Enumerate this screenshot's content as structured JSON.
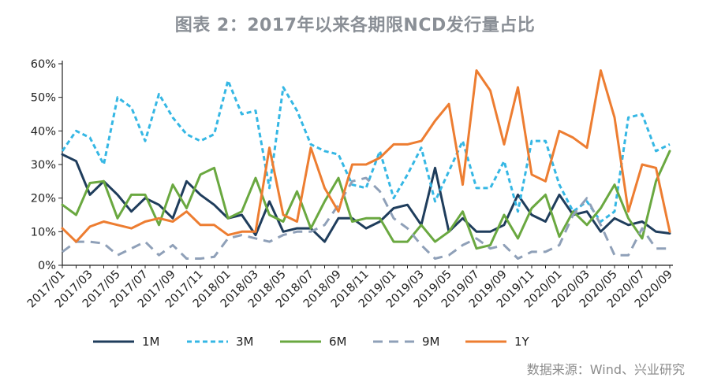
{
  "title": "图表 2：2017年以来各期限NCD发行量占比",
  "source": "数据来源：Wind、兴业研究",
  "chart_data": {
    "type": "line",
    "ylim": [
      0,
      60
    ],
    "y_ticks": [
      "0%",
      "10%",
      "20%",
      "30%",
      "40%",
      "50%",
      "60%"
    ],
    "x": [
      "2017/01",
      "2017/02",
      "2017/03",
      "2017/04",
      "2017/05",
      "2017/06",
      "2017/07",
      "2017/08",
      "2017/09",
      "2017/10",
      "2017/11",
      "2017/12",
      "2018/01",
      "2018/02",
      "2018/03",
      "2018/04",
      "2018/05",
      "2018/06",
      "2018/07",
      "2018/08",
      "2018/09",
      "2018/10",
      "2018/11",
      "2018/12",
      "2019/01",
      "2019/02",
      "2019/03",
      "2019/04",
      "2019/05",
      "2019/06",
      "2019/07",
      "2019/08",
      "2019/09",
      "2019/10",
      "2019/11",
      "2019/12",
      "2020/01",
      "2020/02",
      "2020/03",
      "2020/04",
      "2020/05",
      "2020/06",
      "2020/07",
      "2020/08",
      "2020/09"
    ],
    "x_tick_labels": [
      "2017/01",
      "2017/03",
      "2017/05",
      "2017/07",
      "2017/09",
      "2017/11",
      "2018/01",
      "2018/03",
      "2018/05",
      "2018/07",
      "2018/09",
      "2018/11",
      "2019/01",
      "2019/03",
      "2019/05",
      "2019/07",
      "2019/09",
      "2019/11",
      "2020/01",
      "2020/03",
      "2020/05",
      "2020/07",
      "2020/09"
    ],
    "series": [
      {
        "name": "1M",
        "color": "#1f3d5c",
        "dash": "solid",
        "values": [
          33,
          31,
          21,
          25,
          21,
          16,
          20,
          18,
          14,
          25,
          21,
          18,
          14,
          15,
          9,
          19,
          10,
          11,
          11,
          7,
          14,
          14,
          11,
          13,
          17,
          18,
          12,
          29,
          10,
          14,
          10,
          10,
          12,
          21,
          15,
          13,
          21,
          15,
          16,
          10,
          14,
          12,
          13,
          10,
          9.5
        ]
      },
      {
        "name": "3M",
        "color": "#35b7e4",
        "dash": "dashed",
        "values": [
          34,
          40,
          38,
          30,
          50,
          47,
          37,
          51,
          44,
          39,
          37,
          39,
          55,
          45,
          46,
          23,
          53,
          46,
          36,
          34,
          33,
          24,
          23,
          34,
          20,
          27,
          35,
          19,
          28,
          37,
          23,
          23,
          31,
          16,
          37,
          37,
          24,
          16,
          19,
          13,
          16,
          44,
          45,
          34,
          36
        ]
      },
      {
        "name": "6M",
        "color": "#6aa840",
        "dash": "solid",
        "values": [
          18,
          15,
          24.5,
          25,
          14,
          21,
          21,
          12,
          24,
          17,
          27,
          29,
          14,
          16,
          26,
          15,
          13,
          22,
          11,
          19,
          26,
          13,
          14,
          14,
          7,
          7,
          12,
          7,
          10,
          16,
          5,
          6,
          15,
          8,
          17,
          21,
          8.5,
          16,
          12,
          17,
          24,
          14,
          8,
          25,
          34
        ]
      },
      {
        "name": "9M",
        "color": "#8fa0b8",
        "dash": "longdash",
        "values": [
          4,
          7,
          7,
          6.5,
          3,
          5,
          7,
          3,
          6,
          2,
          2,
          2.5,
          8,
          9,
          8,
          7,
          9,
          10,
          10,
          12,
          18,
          25,
          26,
          22,
          14,
          11,
          6,
          2,
          3,
          6,
          8,
          5,
          6,
          2,
          4,
          4,
          6,
          15,
          20,
          12,
          3,
          3,
          11,
          5,
          5
        ]
      },
      {
        "name": "1Y",
        "color": "#ed7d31",
        "dash": "solid",
        "values": [
          11,
          7,
          11.5,
          13,
          12,
          11,
          13,
          14,
          13,
          16,
          12,
          12,
          9,
          10,
          10,
          35,
          15,
          13,
          35,
          23,
          16,
          30,
          30,
          32,
          36,
          36,
          37,
          43,
          48,
          24,
          58,
          52,
          36,
          53,
          27,
          25,
          40,
          38,
          35,
          58,
          44,
          16,
          30,
          29,
          10
        ]
      }
    ]
  }
}
